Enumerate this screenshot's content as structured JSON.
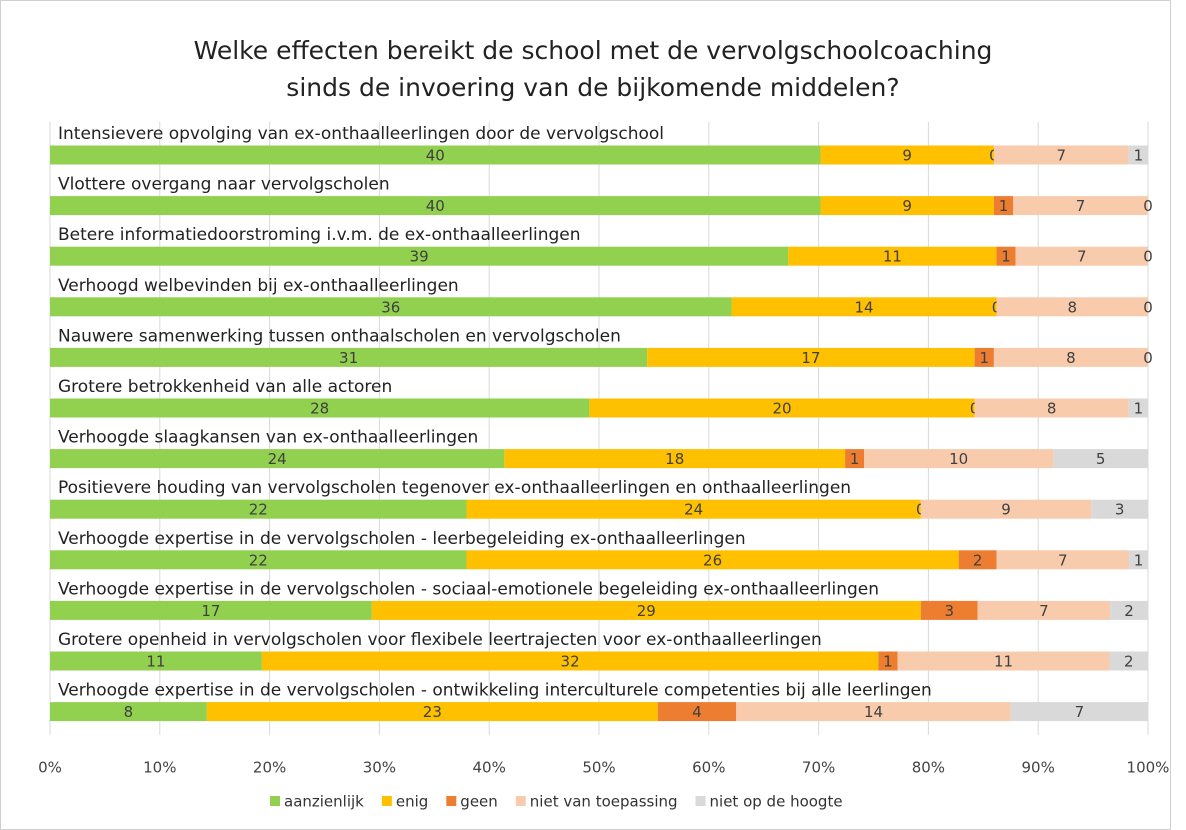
{
  "chart_data": {
    "type": "bar",
    "stacked": "percent",
    "orientation": "horizontal",
    "title": "Welke effecten bereikt de school met de vervolgschoolcoaching sinds de invoering van de bijkomende middelen?",
    "categories": [
      "Intensievere opvolging van ex-onthaalleerlingen door de vervolgschool",
      "Vlottere overgang naar vervolgscholen",
      "Betere informatiedoorstroming i.v.m. de ex-onthaalleerlingen",
      "Verhoogd welbevinden bij ex-onthaalleerlingen",
      "Nauwere samenwerking tussen onthaalscholen en vervolgscholen",
      "Grotere betrokkenheid van alle actoren",
      "Verhoogde slaagkansen van ex-onthaalleerlingen",
      "Positievere houding van vervolgscholen tegenover ex-onthaalleerlingen en onthaalleerlingen",
      "Verhoogde expertise in de vervolgscholen - leerbegeleiding ex-onthaalleerlingen",
      "Verhoogde expertise in de vervolgscholen - sociaal-emotionele begeleiding ex-onthaalleerlingen",
      "Grotere openheid in vervolgscholen voor flexibele leertrajecten voor ex-onthaalleerlingen",
      "Verhoogde expertise in de vervolgscholen - ontwikkeling interculturele competenties bij alle leerlingen"
    ],
    "series": [
      {
        "name": "aanzienlijk",
        "color": "#92d050",
        "values": [
          40,
          40,
          39,
          36,
          31,
          28,
          24,
          22,
          22,
          17,
          11,
          8
        ]
      },
      {
        "name": "enig",
        "color": "#ffc000",
        "values": [
          9,
          9,
          11,
          14,
          17,
          20,
          18,
          24,
          26,
          29,
          32,
          23
        ]
      },
      {
        "name": "geen",
        "color": "#ed7d31",
        "values": [
          0,
          1,
          1,
          0,
          1,
          0,
          1,
          0,
          2,
          3,
          1,
          4
        ]
      },
      {
        "name": "niet van toepassing",
        "color": "#f8cbad",
        "values": [
          7,
          7,
          7,
          8,
          8,
          8,
          10,
          9,
          7,
          7,
          11,
          14
        ]
      },
      {
        "name": "niet op de hoogte",
        "color": "#d9d9d9",
        "values": [
          1,
          0,
          0,
          0,
          0,
          1,
          5,
          3,
          1,
          2,
          2,
          7
        ]
      }
    ],
    "xlim": [
      0,
      100
    ],
    "xticks": [
      {
        "value": 0,
        "label": "0%"
      },
      {
        "value": 10,
        "label": "10%"
      },
      {
        "value": 20,
        "label": "20%"
      },
      {
        "value": 30,
        "label": "30%"
      },
      {
        "value": 40,
        "label": "40%"
      },
      {
        "value": 50,
        "label": "50%"
      },
      {
        "value": 60,
        "label": "60%"
      },
      {
        "value": 70,
        "label": "70%"
      },
      {
        "value": 80,
        "label": "80%"
      },
      {
        "value": 90,
        "label": "90%"
      },
      {
        "value": 100,
        "label": "100%"
      }
    ],
    "grid": true,
    "legend": "bottom"
  }
}
